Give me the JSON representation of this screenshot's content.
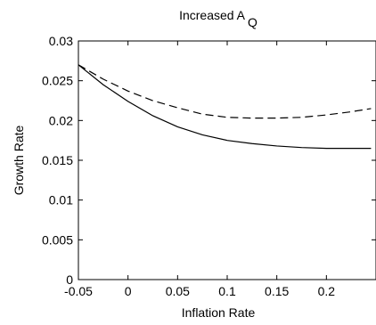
{
  "chart_data": {
    "type": "line",
    "title": {
      "main": "Increased A",
      "subscript": "Q"
    },
    "xlabel": "Inflation Rate",
    "ylabel": "Growth Rate",
    "xlim": [
      -0.05,
      0.25
    ],
    "ylim": [
      0,
      0.03
    ],
    "xticks": [
      -0.05,
      0,
      0.05,
      0.1,
      0.15,
      0.2
    ],
    "xtick_labels": [
      "-0.05",
      "0",
      "0.05",
      "0.1",
      "0.15",
      "0.2"
    ],
    "yticks": [
      0,
      0.005,
      0.01,
      0.015,
      0.02,
      0.025,
      0.03
    ],
    "ytick_labels": [
      "0",
      "0.005",
      "0.01",
      "0.015",
      "0.02",
      "0.025",
      "0.03"
    ],
    "grid": false,
    "legend": "none",
    "series": [
      {
        "line_style": "solid",
        "color": "#000000",
        "x": [
          -0.05,
          -0.025,
          0,
          0.025,
          0.05,
          0.075,
          0.1,
          0.125,
          0.15,
          0.175,
          0.2,
          0.225,
          0.245
        ],
        "y": [
          0.027,
          0.0245,
          0.0224,
          0.0206,
          0.0192,
          0.0182,
          0.0175,
          0.0171,
          0.0168,
          0.0166,
          0.0165,
          0.0165,
          0.0165
        ]
      },
      {
        "line_style": "dashed",
        "color": "#000000",
        "x": [
          -0.05,
          -0.025,
          0,
          0.025,
          0.05,
          0.075,
          0.1,
          0.125,
          0.15,
          0.175,
          0.2,
          0.225,
          0.245
        ],
        "y": [
          0.027,
          0.0252,
          0.0237,
          0.0225,
          0.0216,
          0.0208,
          0.0204,
          0.0203,
          0.0203,
          0.0204,
          0.0207,
          0.0211,
          0.0215
        ]
      }
    ]
  }
}
